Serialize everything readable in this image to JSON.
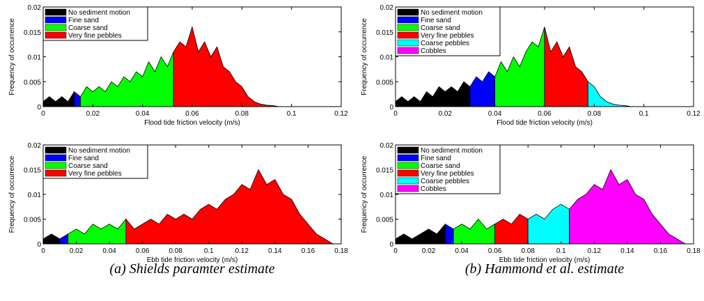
{
  "chart_data": [
    {
      "type": "area",
      "xlabel": "Flood tide friction velocity (m/s)",
      "ylabel": "Frequency of occurrence",
      "xlim": [
        0,
        0.12
      ],
      "ylim": [
        0,
        0.02
      ],
      "xticks": [
        0,
        0.02,
        0.04,
        0.06,
        0.08,
        0.1,
        0.12
      ],
      "yticks": [
        0,
        0.005,
        0.01,
        0.015,
        0.02
      ],
      "legend": "upper left",
      "series": [
        {
          "name": "No sediment motion",
          "color": "#000000",
          "x": [
            0,
            0.0025,
            0.005,
            0.0075,
            0.01,
            0.0125
          ],
          "values": [
            0.001,
            0.002,
            0.001,
            0.002,
            0.001,
            0.003
          ]
        },
        {
          "name": "Fine sand",
          "color": "#0000ff",
          "x": [
            0.0125,
            0.015
          ],
          "values": [
            0.003,
            0.002
          ]
        },
        {
          "name": "Coarse sand",
          "color": "#00ff00",
          "x": [
            0.015,
            0.0175,
            0.02,
            0.0225,
            0.025,
            0.0275,
            0.03,
            0.0325,
            0.035,
            0.0375,
            0.04,
            0.0425,
            0.045,
            0.0475,
            0.05,
            0.0525
          ],
          "values": [
            0.002,
            0.004,
            0.003,
            0.004,
            0.003,
            0.005,
            0.004,
            0.006,
            0.005,
            0.007,
            0.006,
            0.009,
            0.007,
            0.01,
            0.008,
            0.011
          ]
        },
        {
          "name": "Very fine pebbles",
          "color": "#ff0000",
          "x": [
            0.0525,
            0.055,
            0.0575,
            0.06,
            0.0625,
            0.065,
            0.0675,
            0.07,
            0.0725,
            0.075,
            0.0775,
            0.08,
            0.0825,
            0.085,
            0.0875,
            0.09,
            0.0925,
            0.095
          ],
          "values": [
            0.011,
            0.013,
            0.012,
            0.016,
            0.011,
            0.013,
            0.01,
            0.012,
            0.008,
            0.007,
            0.005,
            0.004,
            0.002,
            0.001,
            0.0005,
            0.0003,
            0.0002,
            0
          ]
        }
      ]
    },
    {
      "type": "area",
      "xlabel": "Flood tide friction velocity (m/s)",
      "ylabel": "Frequency of occurrence",
      "xlim": [
        0,
        0.12
      ],
      "ylim": [
        0,
        0.02
      ],
      "xticks": [
        0,
        0.02,
        0.04,
        0.06,
        0.08,
        0.1,
        0.12
      ],
      "yticks": [
        0,
        0.005,
        0.01,
        0.015,
        0.02
      ],
      "legend": "upper left",
      "series": [
        {
          "name": "No sediment motion",
          "color": "#000000",
          "x": [
            0,
            0.0025,
            0.005,
            0.0075,
            0.01,
            0.0125,
            0.015,
            0.0175,
            0.02,
            0.0225,
            0.025,
            0.0275,
            0.03
          ],
          "values": [
            0.001,
            0.002,
            0.001,
            0.002,
            0.001,
            0.003,
            0.002,
            0.004,
            0.003,
            0.004,
            0.003,
            0.005,
            0.004
          ]
        },
        {
          "name": "Fine sand",
          "color": "#0000ff",
          "x": [
            0.03,
            0.0325,
            0.035,
            0.0375,
            0.04
          ],
          "values": [
            0.004,
            0.006,
            0.005,
            0.007,
            0.006
          ]
        },
        {
          "name": "Coarse sand",
          "color": "#00ff00",
          "x": [
            0.04,
            0.0425,
            0.045,
            0.0475,
            0.05,
            0.0525,
            0.055,
            0.0575,
            0.06
          ],
          "values": [
            0.006,
            0.009,
            0.007,
            0.01,
            0.008,
            0.011,
            0.013,
            0.012,
            0.016
          ]
        },
        {
          "name": "Very fine pebbles",
          "color": "#ff0000",
          "x": [
            0.06,
            0.0625,
            0.065,
            0.0675,
            0.07,
            0.0725,
            0.075,
            0.0775
          ],
          "values": [
            0.016,
            0.011,
            0.013,
            0.01,
            0.012,
            0.008,
            0.007,
            0.005
          ]
        },
        {
          "name": "Coarse pebbles",
          "color": "#00ffff",
          "x": [
            0.0775,
            0.08,
            0.0825,
            0.085,
            0.0875,
            0.09,
            0.0925,
            0.095
          ],
          "values": [
            0.005,
            0.004,
            0.002,
            0.001,
            0.0005,
            0.0003,
            0.0002,
            0
          ]
        },
        {
          "name": "Cobbles",
          "color": "#ff00ff",
          "x": [],
          "values": []
        }
      ]
    },
    {
      "type": "area",
      "xlabel": "Ebb tide friction velocity (m/s)",
      "ylabel": "Frequency of occurrence",
      "xlim": [
        0,
        0.18
      ],
      "ylim": [
        0,
        0.02
      ],
      "xticks": [
        0,
        0.02,
        0.04,
        0.06,
        0.08,
        0.1,
        0.12,
        0.14,
        0.16,
        0.18
      ],
      "yticks": [
        0,
        0.005,
        0.01,
        0.015,
        0.02
      ],
      "legend": "upper left",
      "series": [
        {
          "name": "No sediment motion",
          "color": "#000000",
          "x": [
            0,
            0.005,
            0.01
          ],
          "values": [
            0.001,
            0.002,
            0.001
          ]
        },
        {
          "name": "Fine sand",
          "color": "#0000ff",
          "x": [
            0.01,
            0.015
          ],
          "values": [
            0.001,
            0.002
          ]
        },
        {
          "name": "Coarse sand",
          "color": "#00ff00",
          "x": [
            0.015,
            0.02,
            0.025,
            0.03,
            0.035,
            0.04,
            0.045,
            0.05
          ],
          "values": [
            0.002,
            0.003,
            0.002,
            0.004,
            0.003,
            0.004,
            0.003,
            0.005
          ]
        },
        {
          "name": "Very fine pebbles",
          "color": "#ff0000",
          "x": [
            0.05,
            0.055,
            0.06,
            0.065,
            0.07,
            0.075,
            0.08,
            0.085,
            0.09,
            0.095,
            0.1,
            0.105,
            0.11,
            0.115,
            0.12,
            0.125,
            0.13,
            0.135,
            0.14,
            0.145,
            0.15,
            0.155,
            0.16,
            0.165,
            0.17,
            0.175
          ],
          "values": [
            0.005,
            0.003,
            0.004,
            0.005,
            0.004,
            0.006,
            0.005,
            0.006,
            0.005,
            0.007,
            0.008,
            0.007,
            0.009,
            0.01,
            0.012,
            0.011,
            0.015,
            0.012,
            0.013,
            0.01,
            0.009,
            0.006,
            0.004,
            0.002,
            0.001,
            0
          ]
        }
      ]
    },
    {
      "type": "area",
      "xlabel": "Ebb tide friction velocity (m/s)",
      "ylabel": "Frequency of occurrence",
      "xlim": [
        0,
        0.18
      ],
      "ylim": [
        0,
        0.02
      ],
      "xticks": [
        0,
        0.02,
        0.04,
        0.06,
        0.08,
        0.1,
        0.12,
        0.14,
        0.16,
        0.18
      ],
      "yticks": [
        0,
        0.005,
        0.01,
        0.015,
        0.02
      ],
      "legend": "upper left",
      "series": [
        {
          "name": "No sediment motion",
          "color": "#000000",
          "x": [
            0,
            0.005,
            0.01,
            0.015,
            0.02,
            0.025,
            0.03
          ],
          "values": [
            0.001,
            0.002,
            0.001,
            0.002,
            0.003,
            0.002,
            0.004
          ]
        },
        {
          "name": "Fine sand",
          "color": "#0000ff",
          "x": [
            0.03,
            0.035
          ],
          "values": [
            0.004,
            0.003
          ]
        },
        {
          "name": "Coarse sand",
          "color": "#00ff00",
          "x": [
            0.035,
            0.04,
            0.045,
            0.05,
            0.055,
            0.06
          ],
          "values": [
            0.003,
            0.004,
            0.003,
            0.005,
            0.003,
            0.004
          ]
        },
        {
          "name": "Very fine pebbles",
          "color": "#ff0000",
          "x": [
            0.06,
            0.065,
            0.07,
            0.075,
            0.08
          ],
          "values": [
            0.004,
            0.005,
            0.004,
            0.006,
            0.005
          ]
        },
        {
          "name": "Coarse pebbles",
          "color": "#00ffff",
          "x": [
            0.08,
            0.085,
            0.09,
            0.095,
            0.1,
            0.105
          ],
          "values": [
            0.005,
            0.006,
            0.005,
            0.007,
            0.008,
            0.007
          ]
        },
        {
          "name": "Cobbles",
          "color": "#ff00ff",
          "x": [
            0.105,
            0.11,
            0.115,
            0.12,
            0.125,
            0.13,
            0.135,
            0.14,
            0.145,
            0.15,
            0.155,
            0.16,
            0.165,
            0.17,
            0.175
          ],
          "values": [
            0.007,
            0.009,
            0.01,
            0.012,
            0.011,
            0.015,
            0.012,
            0.013,
            0.01,
            0.009,
            0.006,
            0.004,
            0.002,
            0.001,
            0
          ]
        }
      ]
    }
  ],
  "captions": [
    "(a) Shields paramter estimate",
    "(b) Hammond et al. estimate"
  ]
}
